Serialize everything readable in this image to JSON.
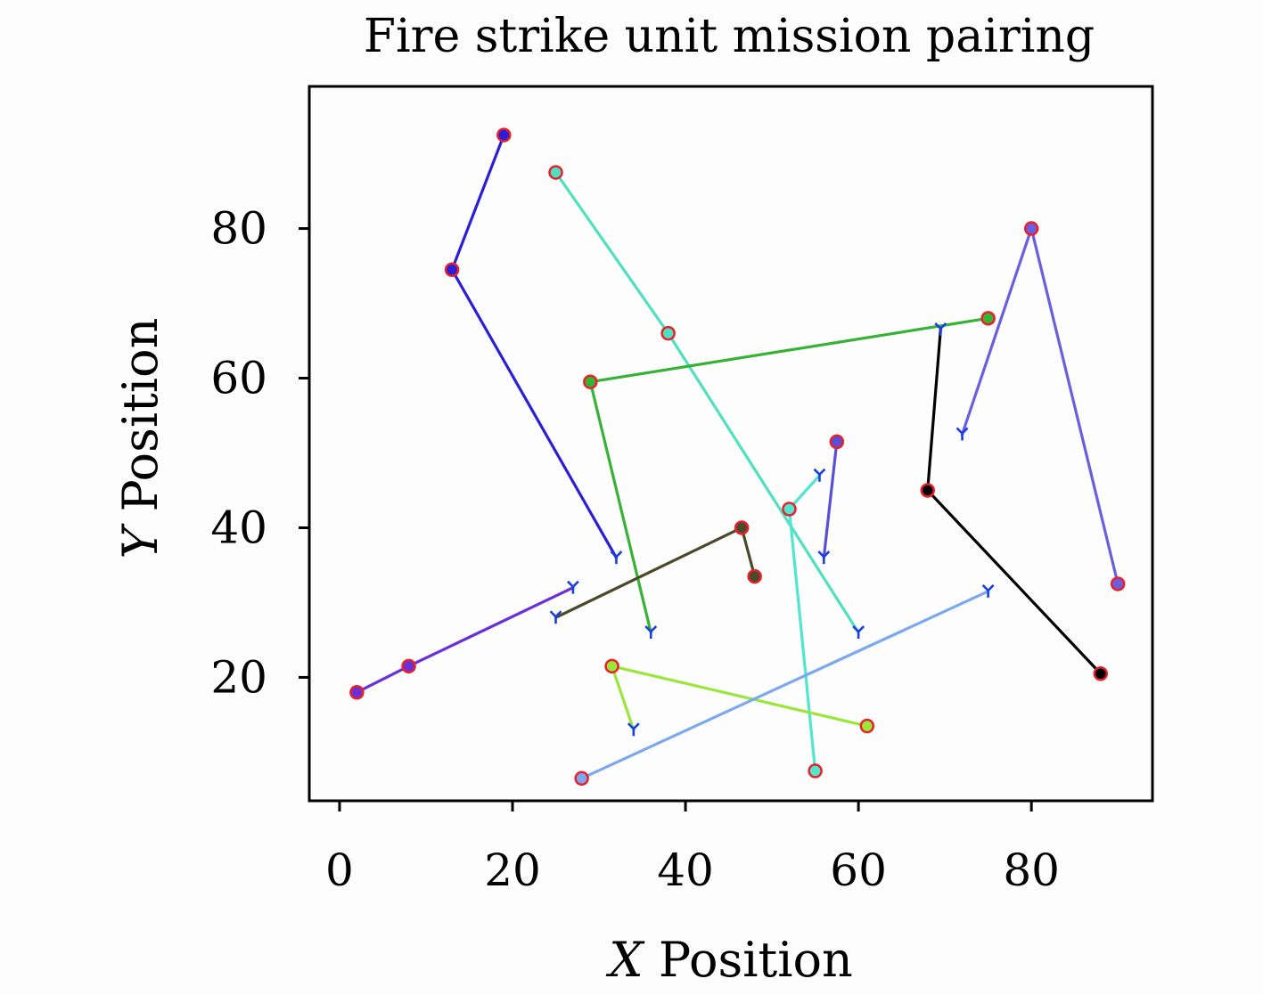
{
  "chart_data": {
    "type": "line",
    "title": "Fire strike unit mission pairing",
    "xlabel_var": "X",
    "xlabel_rest": " Position",
    "ylabel_var": "Y",
    "ylabel_rest": " Position",
    "xlim": [
      -3.5,
      94
    ],
    "ylim": [
      3.5,
      99
    ],
    "xticks": [
      0,
      20,
      40,
      60,
      80
    ],
    "yticks": [
      20,
      40,
      60,
      80
    ],
    "grid": false,
    "legend": "none",
    "series": [
      {
        "color": "#2a1fd6",
        "points": [
          [
            19,
            92.5
          ],
          [
            13,
            74.5
          ],
          [
            32,
            36
          ]
        ]
      },
      {
        "color": "#4fe0c2",
        "points": [
          [
            25,
            87.5
          ],
          [
            38,
            66
          ],
          [
            60,
            26
          ]
        ]
      },
      {
        "color": "#6a5fdc",
        "points": [
          [
            90,
            32.5
          ],
          [
            80,
            80
          ],
          [
            72,
            52.5
          ]
        ]
      },
      {
        "color": "#36b336",
        "points": [
          [
            75,
            68
          ],
          [
            29,
            59.5
          ],
          [
            36,
            26
          ]
        ]
      },
      {
        "color": "#000000",
        "points": [
          [
            88,
            20.5
          ],
          [
            68,
            45
          ],
          [
            69.5,
            66.5
          ]
        ]
      },
      {
        "color": "#51e6cf",
        "points": [
          [
            55,
            7.5
          ],
          [
            52,
            42.5
          ],
          [
            55.5,
            47
          ]
        ]
      },
      {
        "color": "#5a4fd8",
        "points": [
          [
            57.5,
            51.5
          ],
          [
            56,
            36
          ]
        ]
      },
      {
        "color": "#4a4a2a",
        "points": [
          [
            48,
            33.5
          ],
          [
            46.5,
            40
          ],
          [
            25,
            28
          ]
        ]
      },
      {
        "color": "#6b2fd8",
        "points": [
          [
            2,
            18
          ],
          [
            8,
            21.5
          ],
          [
            27,
            32
          ]
        ]
      },
      {
        "color": "#9be63a",
        "points": [
          [
            61,
            13.5
          ],
          [
            31.5,
            21.5
          ],
          [
            34,
            13
          ]
        ]
      },
      {
        "color": "#7ba8ef",
        "points": [
          [
            28,
            6.5
          ],
          [
            75,
            31.5
          ]
        ]
      }
    ]
  }
}
